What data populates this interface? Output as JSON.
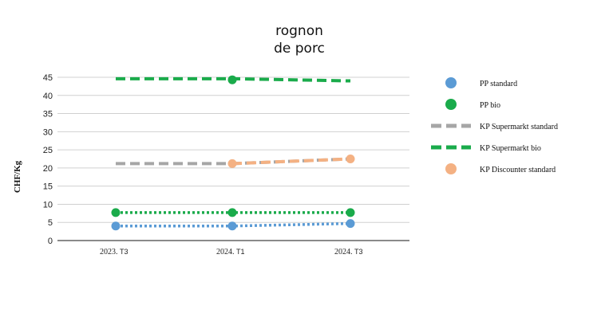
{
  "chart_data": {
    "type": "line",
    "title_lines": [
      "rognon",
      "de porc"
    ],
    "ylabel": "CHF/Kg",
    "xlabel": "",
    "categories": [
      {
        "year": "2023",
        "period": "T3"
      },
      {
        "year": "2024",
        "period": "T1"
      },
      {
        "year": "2024",
        "period": "T3"
      }
    ],
    "ylim": [
      0,
      45
    ],
    "yticks": [
      0,
      5,
      10,
      15,
      20,
      25,
      30,
      35,
      40,
      45
    ],
    "grid": true,
    "legend_position": "right",
    "series": [
      {
        "name": "PP standard",
        "color": "#5b9bd5",
        "style": "dotted",
        "marker": "circle",
        "values": [
          4.0,
          4.0,
          4.7
        ]
      },
      {
        "name": "PP bio",
        "color": "#1aab4b",
        "style": "dotted",
        "marker": "circle",
        "values": [
          7.7,
          7.7,
          7.7
        ]
      },
      {
        "name": "KP Supermarkt standard",
        "color": "#a6a6a6",
        "style": "dashed",
        "marker": "none",
        "values": [
          21.2,
          21.2,
          22.5
        ]
      },
      {
        "name": "KP Supermarkt bio",
        "color": "#1aab4b",
        "style": "dashed",
        "marker": "none",
        "values": [
          44.6,
          44.6,
          44.0
        ]
      },
      {
        "name": "KP Discounter standard",
        "color": "#f4b183",
        "style": "dashed",
        "marker": "circle",
        "values": [
          null,
          21.2,
          22.5
        ]
      }
    ],
    "extra_markers": [
      {
        "series": "PP bio",
        "category_index": 1,
        "value": 44.3
      }
    ]
  }
}
